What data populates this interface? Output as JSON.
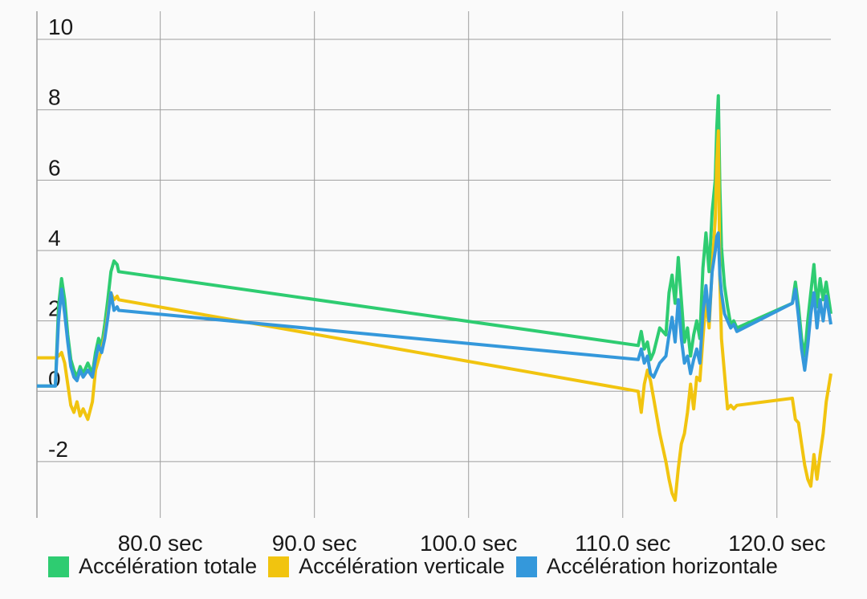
{
  "chart_data": {
    "type": "line",
    "title": "",
    "xlabel": "",
    "ylabel": "",
    "xlim": [
      72,
      123.5
    ],
    "ylim": [
      -3.6,
      10.8
    ],
    "x_ticks": [
      80,
      90,
      100,
      110,
      120
    ],
    "x_tick_labels": [
      "80,0 sec",
      "90,0 sec",
      "100,0 sec",
      "110,0 sec",
      "120,0 sec"
    ],
    "y_ticks": [
      -2,
      0,
      2,
      4,
      6,
      8,
      10
    ],
    "y_tick_labels": [
      "-2",
      "0",
      "2",
      "4",
      "6",
      "8",
      "10"
    ],
    "grid": true,
    "legend_position": "bottom",
    "series": [
      {
        "name": "Accélération totale",
        "color": "#2ecc71",
        "x": [
          72,
          73.2,
          73.4,
          73.6,
          73.8,
          74,
          74.2,
          74.4,
          74.6,
          74.8,
          75,
          75.3,
          75.6,
          75.8,
          76,
          76.2,
          76.4,
          76.6,
          76.8,
          77,
          77.2,
          77.3,
          111,
          111.2,
          111.4,
          111.6,
          111.8,
          112,
          112.4,
          112.8,
          113,
          113.2,
          113.4,
          113.6,
          113.8,
          114,
          114.2,
          114.4,
          114.6,
          114.8,
          115,
          115.2,
          115.4,
          115.6,
          115.8,
          116,
          116.1,
          116.2,
          116.3,
          116.4,
          116.6,
          116.8,
          117,
          117.2,
          117.4,
          121,
          121.2,
          121.4,
          121.6,
          121.8,
          122,
          122.2,
          122.4,
          122.6,
          122.8,
          123,
          123.2,
          123.5
        ],
        "y": [
          0.15,
          0.15,
          2.4,
          3.2,
          2.6,
          1.6,
          0.9,
          0.6,
          0.4,
          0.7,
          0.5,
          0.8,
          0.5,
          1.1,
          1.5,
          1.3,
          1.9,
          2.6,
          3.4,
          3.7,
          3.6,
          3.4,
          1.3,
          1.7,
          1.2,
          1.4,
          0.9,
          1.1,
          1.8,
          1.6,
          2.8,
          3.3,
          2.5,
          3.8,
          2.6,
          1.4,
          1.8,
          1.0,
          1.6,
          2.0,
          1.5,
          3.5,
          4.5,
          3.4,
          5.1,
          6.0,
          7.5,
          8.4,
          5.8,
          4.1,
          3.0,
          2.4,
          1.9,
          2.0,
          1.8,
          2.5,
          3.1,
          2.4,
          1.5,
          1.0,
          2.0,
          2.8,
          3.6,
          2.4,
          3.2,
          2.6,
          3.1,
          2.2
        ]
      },
      {
        "name": "Accélération verticale",
        "color": "#f1c40f",
        "x": [
          72,
          73.2,
          73.4,
          73.6,
          73.8,
          74,
          74.2,
          74.4,
          74.6,
          74.8,
          75,
          75.3,
          75.6,
          75.8,
          76,
          76.2,
          76.4,
          76.6,
          76.8,
          77,
          77.2,
          77.3,
          111,
          111.2,
          111.4,
          111.6,
          111.8,
          112,
          112.4,
          112.8,
          113,
          113.2,
          113.4,
          113.6,
          113.8,
          114,
          114.2,
          114.4,
          114.6,
          114.8,
          115,
          115.2,
          115.4,
          115.6,
          115.8,
          116,
          116.1,
          116.2,
          116.3,
          116.4,
          116.6,
          116.8,
          117,
          117.2,
          117.4,
          121,
          121.2,
          121.4,
          121.6,
          121.8,
          122,
          122.2,
          122.4,
          122.6,
          122.8,
          123,
          123.2,
          123.5
        ],
        "y": [
          0.95,
          0.95,
          1.0,
          1.1,
          0.8,
          0.2,
          -0.4,
          -0.6,
          -0.3,
          -0.7,
          -0.5,
          -0.8,
          -0.3,
          0.6,
          0.9,
          1.2,
          1.6,
          2.2,
          2.8,
          2.6,
          2.7,
          2.6,
          0.0,
          -0.6,
          0.2,
          0.6,
          0.3,
          -0.2,
          -1.2,
          -2.0,
          -2.5,
          -2.9,
          -3.1,
          -2.2,
          -1.5,
          -1.2,
          -0.6,
          0.2,
          -0.5,
          0.4,
          0.3,
          1.5,
          2.6,
          1.8,
          3.5,
          4.9,
          6.5,
          7.4,
          3.2,
          1.5,
          0.5,
          -0.5,
          -0.4,
          -0.5,
          -0.4,
          -0.2,
          -0.8,
          -0.9,
          -1.5,
          -2.1,
          -2.5,
          -2.7,
          -1.8,
          -2.5,
          -1.8,
          -1.2,
          -0.3,
          0.5
        ]
      },
      {
        "name": "Accélération horizontale",
        "color": "#3498db",
        "x": [
          72,
          73.2,
          73.4,
          73.6,
          73.8,
          74,
          74.2,
          74.4,
          74.6,
          74.8,
          75,
          75.3,
          75.6,
          75.8,
          76,
          76.2,
          76.4,
          76.6,
          76.8,
          77,
          77.2,
          77.3,
          111,
          111.2,
          111.4,
          111.6,
          111.8,
          112,
          112.4,
          112.8,
          113,
          113.2,
          113.4,
          113.6,
          113.8,
          114,
          114.2,
          114.4,
          114.6,
          114.8,
          115,
          115.2,
          115.4,
          115.6,
          115.8,
          116,
          116.1,
          116.2,
          116.3,
          116.4,
          116.6,
          116.8,
          117,
          117.2,
          117.4,
          121,
          121.2,
          121.4,
          121.6,
          121.8,
          122,
          122.2,
          122.4,
          122.6,
          122.8,
          123,
          123.2,
          123.5
        ],
        "y": [
          0.15,
          0.15,
          2.0,
          2.9,
          2.2,
          1.4,
          0.7,
          0.4,
          0.3,
          0.6,
          0.4,
          0.6,
          0.4,
          0.9,
          1.3,
          1.1,
          1.5,
          2.1,
          2.8,
          2.3,
          2.4,
          2.3,
          0.9,
          1.2,
          0.8,
          1.0,
          0.5,
          0.4,
          0.8,
          1.0,
          1.6,
          2.1,
          1.4,
          2.6,
          1.5,
          0.8,
          1.0,
          0.5,
          0.9,
          1.2,
          0.8,
          2.2,
          3.0,
          2.0,
          3.4,
          4.0,
          4.4,
          4.5,
          3.3,
          2.8,
          2.2,
          2.0,
          1.8,
          1.9,
          1.7,
          2.5,
          2.9,
          2.1,
          1.2,
          0.6,
          1.3,
          2.2,
          2.8,
          1.8,
          2.6,
          2.0,
          2.7,
          1.9
        ]
      }
    ]
  }
}
